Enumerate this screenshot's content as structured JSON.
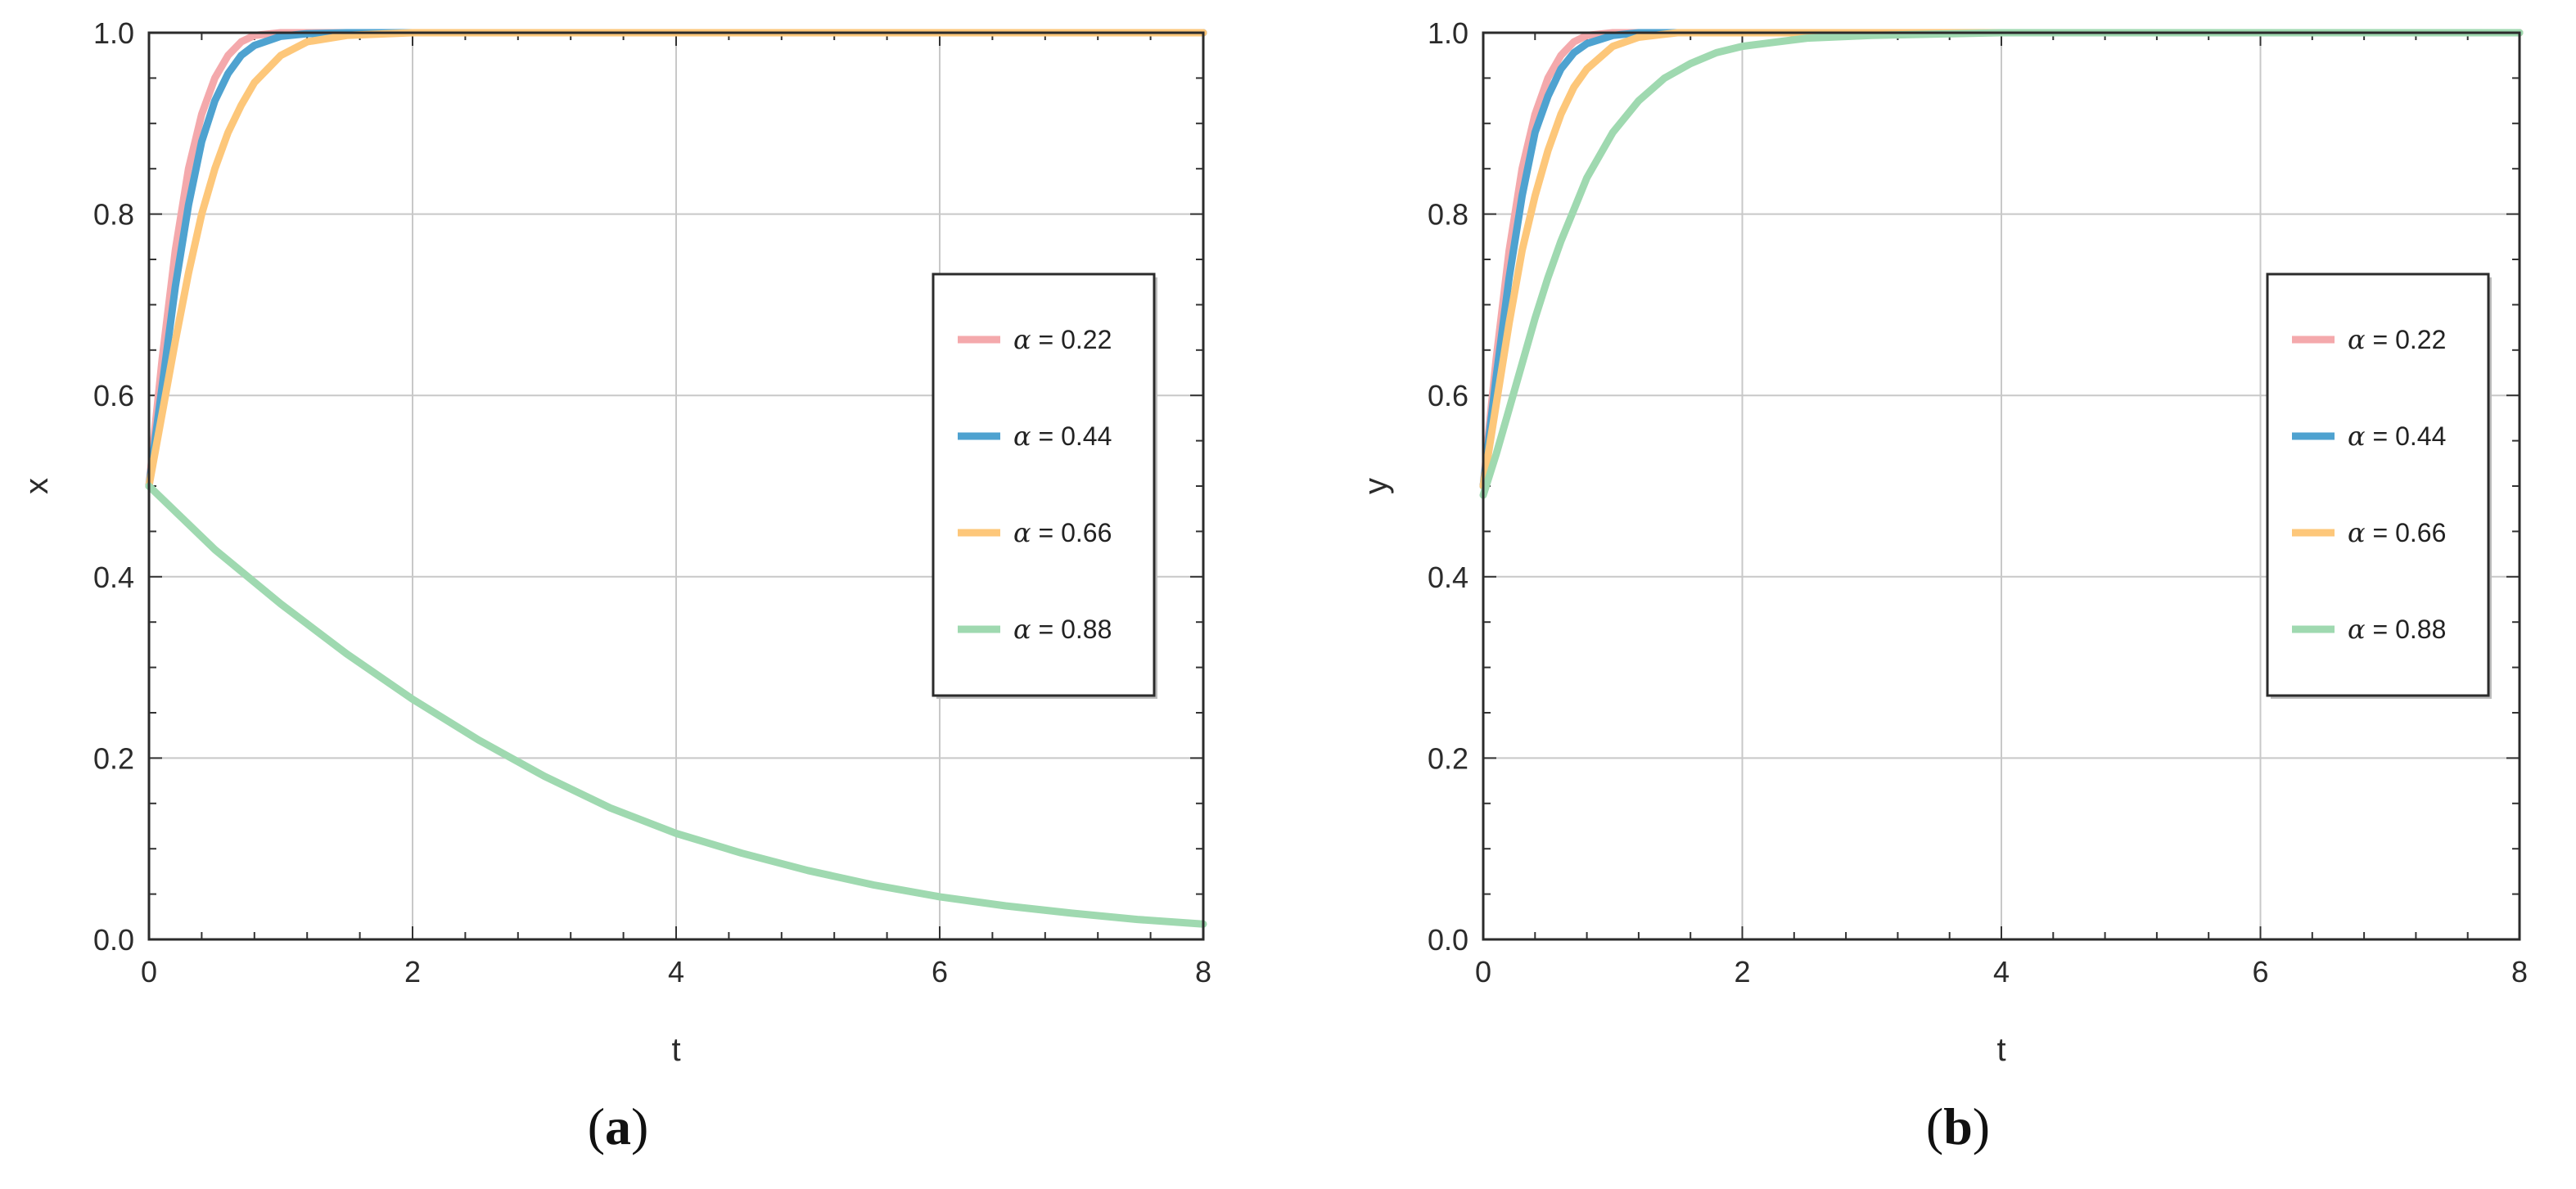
{
  "captions": {
    "a_open": "(",
    "a_letter": "a",
    "a_close": ")",
    "b_open": "(",
    "b_letter": "b",
    "b_close": ")"
  },
  "chart_data": [
    {
      "type": "line",
      "panel": "a",
      "xlabel": "t",
      "ylabel": "x",
      "xlim": [
        0,
        8
      ],
      "ylim": [
        0,
        1.0
      ],
      "xticks": [
        "0",
        "2",
        "4",
        "6",
        "8"
      ],
      "yticks": [
        "0.0",
        "0.2",
        "0.4",
        "0.6",
        "0.8",
        "1.0"
      ],
      "grid": true,
      "legend_position": "right",
      "series": [
        {
          "name": "α = 0.22",
          "color": "#f4a9ac",
          "x": [
            0,
            0.1,
            0.2,
            0.3,
            0.4,
            0.5,
            0.6,
            0.7,
            0.8,
            1.0,
            1.2,
            1.5,
            2,
            3,
            4,
            5,
            6,
            7,
            8
          ],
          "y": [
            0.5,
            0.64,
            0.76,
            0.85,
            0.91,
            0.95,
            0.975,
            0.99,
            0.997,
            1.0,
            1.0,
            1.0,
            1.0,
            1.0,
            1.0,
            1.0,
            1.0,
            1.0,
            1.0
          ]
        },
        {
          "name": "α = 0.44",
          "color": "#4ea2d0",
          "x": [
            0,
            0.1,
            0.2,
            0.3,
            0.4,
            0.5,
            0.6,
            0.7,
            0.8,
            1.0,
            1.2,
            1.5,
            2,
            3,
            4,
            5,
            6,
            7,
            8
          ],
          "y": [
            0.5,
            0.61,
            0.72,
            0.81,
            0.88,
            0.925,
            0.955,
            0.975,
            0.986,
            0.996,
            0.999,
            1.0,
            1.0,
            1.0,
            1.0,
            1.0,
            1.0,
            1.0,
            1.0
          ]
        },
        {
          "name": "α = 0.66",
          "color": "#fdc77a",
          "x": [
            0,
            0.1,
            0.2,
            0.3,
            0.4,
            0.5,
            0.6,
            0.7,
            0.8,
            1.0,
            1.2,
            1.5,
            2,
            3,
            4,
            5,
            6,
            7,
            8
          ],
          "y": [
            0.5,
            0.58,
            0.66,
            0.735,
            0.8,
            0.85,
            0.89,
            0.92,
            0.945,
            0.975,
            0.99,
            0.997,
            1.0,
            1.0,
            1.0,
            1.0,
            1.0,
            1.0,
            1.0
          ]
        },
        {
          "name": "α = 0.88",
          "color": "#9fd9b0",
          "x": [
            0,
            0.5,
            1,
            1.5,
            2,
            2.5,
            3,
            3.5,
            4,
            4.5,
            5,
            5.5,
            6,
            6.5,
            7,
            7.5,
            8
          ],
          "y": [
            0.5,
            0.43,
            0.37,
            0.315,
            0.265,
            0.22,
            0.18,
            0.145,
            0.117,
            0.095,
            0.076,
            0.06,
            0.047,
            0.037,
            0.029,
            0.022,
            0.017
          ]
        }
      ]
    },
    {
      "type": "line",
      "panel": "b",
      "xlabel": "t",
      "ylabel": "y",
      "xlim": [
        0,
        8
      ],
      "ylim": [
        0,
        1.0
      ],
      "xticks": [
        "0",
        "2",
        "4",
        "6",
        "8"
      ],
      "yticks": [
        "0.0",
        "0.2",
        "0.4",
        "0.6",
        "0.8",
        "1.0"
      ],
      "grid": true,
      "legend_position": "right",
      "series": [
        {
          "name": "α = 0.22",
          "color": "#f4a9ac",
          "x": [
            0,
            0.1,
            0.2,
            0.3,
            0.4,
            0.5,
            0.6,
            0.7,
            0.8,
            1.0,
            1.2,
            1.5,
            2,
            3,
            4,
            5,
            6,
            7,
            8
          ],
          "y": [
            0.5,
            0.64,
            0.76,
            0.85,
            0.91,
            0.95,
            0.975,
            0.99,
            0.997,
            1.0,
            1.0,
            1.0,
            1.0,
            1.0,
            1.0,
            1.0,
            1.0,
            1.0,
            1.0
          ]
        },
        {
          "name": "α = 0.44",
          "color": "#4ea2d0",
          "x": [
            0,
            0.1,
            0.2,
            0.3,
            0.4,
            0.5,
            0.6,
            0.7,
            0.8,
            1.0,
            1.2,
            1.5,
            2,
            3,
            4,
            5,
            6,
            7,
            8
          ],
          "y": [
            0.5,
            0.62,
            0.73,
            0.82,
            0.89,
            0.93,
            0.96,
            0.978,
            0.988,
            0.997,
            1.0,
            1.0,
            1.0,
            1.0,
            1.0,
            1.0,
            1.0,
            1.0,
            1.0
          ]
        },
        {
          "name": "α = 0.66",
          "color": "#fdc77a",
          "x": [
            0,
            0.1,
            0.2,
            0.3,
            0.4,
            0.5,
            0.6,
            0.7,
            0.8,
            1.0,
            1.2,
            1.5,
            2,
            3,
            4,
            5,
            6,
            7,
            8
          ],
          "y": [
            0.5,
            0.59,
            0.68,
            0.76,
            0.82,
            0.87,
            0.91,
            0.94,
            0.96,
            0.985,
            0.995,
            1.0,
            1.0,
            1.0,
            1.0,
            1.0,
            1.0,
            1.0,
            1.0
          ]
        },
        {
          "name": "α = 0.88",
          "color": "#9fd9b0",
          "x": [
            0,
            0.1,
            0.2,
            0.3,
            0.4,
            0.5,
            0.6,
            0.7,
            0.8,
            1.0,
            1.2,
            1.4,
            1.6,
            1.8,
            2.0,
            2.5,
            3,
            4,
            5,
            6,
            7,
            8
          ],
          "y": [
            0.49,
            0.535,
            0.585,
            0.635,
            0.685,
            0.73,
            0.77,
            0.805,
            0.84,
            0.89,
            0.925,
            0.95,
            0.966,
            0.978,
            0.985,
            0.994,
            0.997,
            1.0,
            1.0,
            1.0,
            1.0,
            1.0
          ]
        }
      ]
    }
  ]
}
